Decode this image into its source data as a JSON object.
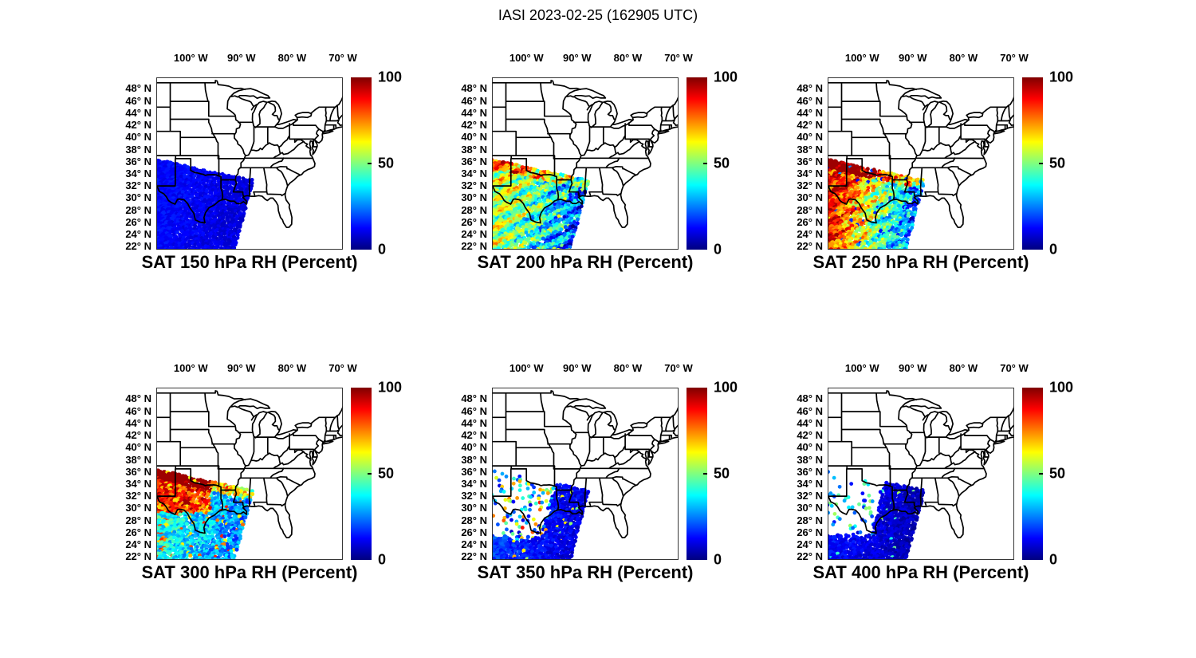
{
  "suptitle": "IASI 2023-02-25 (162905 UTC)",
  "axes": {
    "lon_ticks": [
      {
        "deg": -100,
        "label": "100° W"
      },
      {
        "deg": -90,
        "label": "90° W"
      },
      {
        "deg": -80,
        "label": "80° W"
      },
      {
        "deg": -70,
        "label": "70° W"
      }
    ],
    "lat_ticks": [
      {
        "deg": 48,
        "label": "48° N"
      },
      {
        "deg": 46,
        "label": "46° N"
      },
      {
        "deg": 44,
        "label": "44° N"
      },
      {
        "deg": 42,
        "label": "42° N"
      },
      {
        "deg": 40,
        "label": "40° N"
      },
      {
        "deg": 38,
        "label": "38° N"
      },
      {
        "deg": 36,
        "label": "36° N"
      },
      {
        "deg": 34,
        "label": "34° N"
      },
      {
        "deg": 32,
        "label": "32° N"
      },
      {
        "deg": 30,
        "label": "30° N"
      },
      {
        "deg": 28,
        "label": "28° N"
      },
      {
        "deg": 26,
        "label": "26° N"
      },
      {
        "deg": 24,
        "label": "24° N"
      },
      {
        "deg": 22,
        "label": "22° N"
      }
    ]
  },
  "colorbar": {
    "ticks": [
      {
        "value": 100,
        "label": "100"
      },
      {
        "value": 50,
        "label": "50"
      },
      {
        "value": 0,
        "label": "0"
      }
    ]
  },
  "chart_data": {
    "type": "scatter",
    "title": "IASI 2023-02-25 (162905 UTC)",
    "instrument": "IASI",
    "date": "2023-02-25",
    "time_utc": "162905",
    "variable": "RH (Percent)",
    "colormap": "jet",
    "value_range": [
      0,
      100
    ],
    "colorbar_ticks": [
      0,
      50,
      100
    ],
    "legend_position": "right-colorbar-per-panel",
    "grid": false,
    "map_extent": {
      "lon_min": -106.8,
      "lon_max": -70.0,
      "lat_min": 21.5,
      "lat_max": 49.9
    },
    "swath": {
      "top_edge_deg": [
        [
          -107.6,
          36.2
        ],
        [
          -87.5,
          32.8
        ]
      ],
      "right_edge_deg": [
        [
          -87.6,
          33.0
        ],
        [
          -91.3,
          21.5
        ]
      ],
      "marker": "filled-circle",
      "approx_marker_px": 5
    },
    "panels": [
      {
        "level_hPa": 150,
        "title": "SAT 150 hPa RH (Percent)",
        "summary": "Uniform deep-blue swath, RH ~0-12% everywhere",
        "pattern": {
          "seed": 11,
          "dense_max": 1.05,
          "base": 9,
          "grad": 4,
          "gexp": 1,
          "noise": 6,
          "stripes": 0,
          "drop": 0,
          "speckle": 0
        }
      },
      {
        "level_hPa": 200,
        "title": "SAT 200 hPa RH (Percent)",
        "summary": "Yellow RH ~50-65 over NW half and along top edge with diagonal cyan striping; blue ~15-30 toward SE swath edge",
        "pattern": {
          "seed": 22,
          "dense_max": 1.05,
          "base": 19,
          "grad": 38,
          "gexp": 0.85,
          "noise": 24,
          "stripes": 13,
          "top_dist": 1.3,
          "top_amt": 24,
          "top_lon": -999,
          "drop": 0.02,
          "speckle": 0.05,
          "sp_lo": 50,
          "sp_hi": 64
        }
      },
      {
        "level_hPa": 250,
        "title": "SAT 250 hPa RH (Percent)",
        "summary": "Red RH ~75-95 over NW half and along top edge; cyan/blue ~15-40 toward SE swath edge",
        "pattern": {
          "seed": 33,
          "dense_max": 1.05,
          "base": 22,
          "grad": 62,
          "gexp": 1,
          "noise": 28,
          "stripes": 10,
          "top_dist": 1.6,
          "top_amt": 30,
          "top_lon": -999,
          "drop": 0.05,
          "speckle": 0.03,
          "sp_lo": 12,
          "sp_hi": 30
        }
      },
      {
        "level_hPa": 300,
        "title": "SAT 300 hPa RH (Percent)",
        "summary": "Dense red ~70-95 NW of 96W north of 29.5N and along top edge; green/cyan mix south of it; cyan-blue ~25-40 in SE",
        "pattern": {
          "seed": 44,
          "dense_max": 1.05,
          "base": 25,
          "grad": 14,
          "gexp": 1,
          "noise": 22,
          "stripes": 0,
          "box_lon": -96,
          "box_lat": 29.2,
          "box_amt": 48,
          "top_dist": 1.5,
          "top_amt": 40,
          "top_lon": -999,
          "drop": 0.05,
          "speckle": 0.08,
          "sp_lo": 60,
          "sp_hi": 88
        }
      },
      {
        "level_hPa": 350,
        "title": "SAT 350 hPa RH (Percent)",
        "summary": "Dense dark-blue blob RH ~5-20 over SE half and southernmost rows; sparse cyan/yellow/orange retrievals over NW",
        "pattern": {
          "seed": 55,
          "dense_max": 0.44,
          "bottom_lat": 25.0,
          "base": 9,
          "grad": 10,
          "gexp": 1,
          "noise": 10,
          "sparse_prob": 0.2,
          "sparse_base": 38,
          "sparse_spread": 34,
          "sparse_hot": 0.08,
          "drop": 0,
          "speckle": 0.04,
          "sp_lo": 45,
          "sp_hi": 75
        }
      },
      {
        "level_hPa": 400,
        "title": "SAT 400 hPa RH (Percent)",
        "summary": "Dense dark-blue blob RH ~2-14 over SE half and southernmost rows; sparse cyan-green dots over NW",
        "pattern": {
          "seed": 66,
          "dense_max": 0.52,
          "bottom_lat": 25.3,
          "base": 5,
          "grad": 9,
          "gexp": 1,
          "noise": 8,
          "sparse_prob": 0.11,
          "sparse_base": 34,
          "sparse_spread": 22,
          "sparse_hot": 0.01,
          "drop": 0,
          "speckle": 0.02,
          "sp_lo": 38,
          "sp_hi": 55
        }
      }
    ]
  }
}
